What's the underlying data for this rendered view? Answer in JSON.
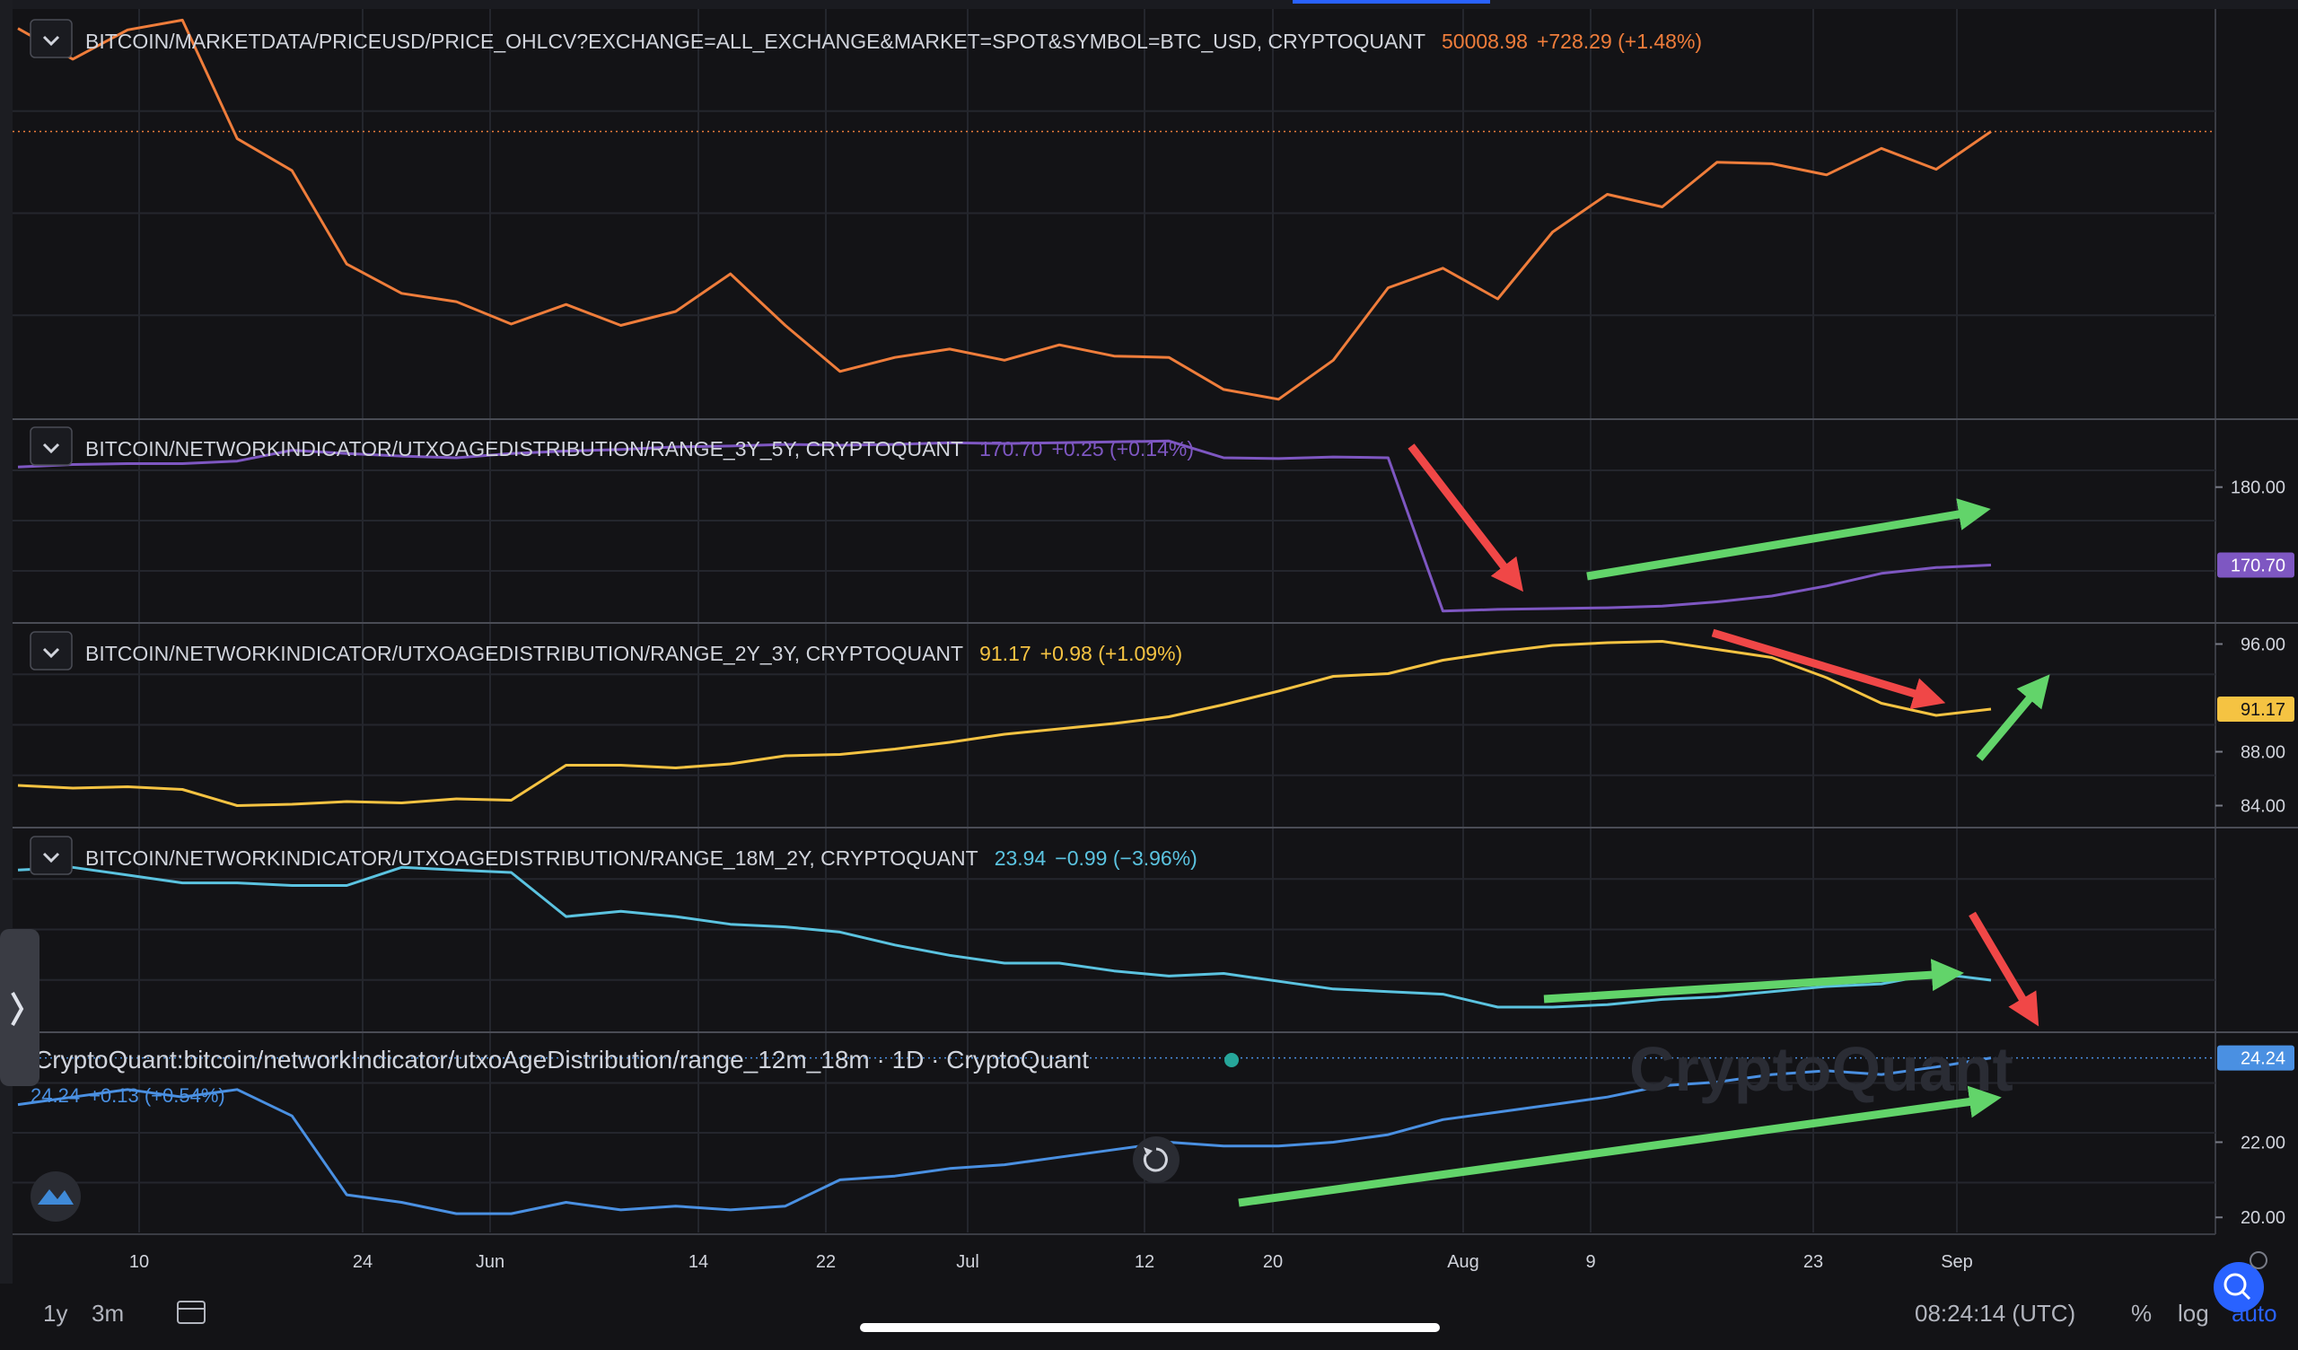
{
  "time_axis": {
    "labels": [
      "10",
      "24",
      "Jun",
      "14",
      "22",
      "Jul",
      "12",
      "20",
      "Aug",
      "9",
      "23",
      "Sep"
    ]
  },
  "panes": [
    {
      "key": "price",
      "title": "BITCOIN/MARKETDATA/PRICEUSD/PRICE_OHLCV?EXCHANGE=ALL_EXCHANGE&MARKET=SPOT&SYMBOL=BTC_USD, CRYPTOQUANT",
      "value": "50008.98",
      "change": "+728.29 (+1.48%)",
      "color": "#ef7d3b",
      "ticks": [],
      "price_tag": null
    },
    {
      "key": "range_3y_5y",
      "title": "BITCOIN/NETWORKINDICATOR/UTXOAGEDISTRIBUTION/RANGE_3Y_5Y, CRYPTOQUANT",
      "value": "170.70",
      "change": "+0.25 (+0.14%)",
      "color": "#7e57c2",
      "ticks": [
        "180.00"
      ],
      "price_tag": "170.70"
    },
    {
      "key": "range_2y_3y",
      "title": "BITCOIN/NETWORKINDICATOR/UTXOAGEDISTRIBUTION/RANGE_2Y_3Y, CRYPTOQUANT",
      "value": "91.17",
      "change": "+0.98 (+1.09%)",
      "color": "#f5c342",
      "ticks": [
        "96.00",
        "88.00",
        "84.00"
      ],
      "price_tag": "91.17"
    },
    {
      "key": "range_18m_2y",
      "title": "BITCOIN/NETWORKINDICATOR/UTXOAGEDISTRIBUTION/RANGE_18M_2Y, CRYPTOQUANT",
      "value": "23.94",
      "change": "−0.99 (−3.96%)",
      "color": "#5bc3e0",
      "ticks": [],
      "price_tag": null
    },
    {
      "key": "range_12m_18m",
      "title": "CryptoQuant:bitcoin/networkIndicator/utxoAgeDistribution/range_12m_18m · 1D · CryptoQuant",
      "value": "24.24",
      "change": "+0.13 (+0.54%)",
      "color": "#4a90e2",
      "ticks": [
        "22.00",
        "20.00"
      ],
      "price_tag": "24.24"
    }
  ],
  "watermark": "CryptoQuant",
  "bottom_bar": {
    "range_1y": "1y",
    "range_3m": "3m",
    "clock": "08:24:14 (UTC)",
    "percent": "%",
    "log": "log",
    "auto": "auto"
  },
  "chart_data": {
    "type": "line",
    "x": [
      "Apr 30",
      "May 3",
      "May 6",
      "May 10",
      "May 13",
      "May 16",
      "May 19",
      "May 24",
      "May 27",
      "Jun 1",
      "Jun 4",
      "Jun 7",
      "Jun 10",
      "Jun 14",
      "Jun 17",
      "Jun 22",
      "Jun 25",
      "Jun 28",
      "Jul 1",
      "Jul 4",
      "Jul 7",
      "Jul 12",
      "Jul 16",
      "Jul 20",
      "Jul 23",
      "Jul 27",
      "Aug 1",
      "Aug 4",
      "Aug 7",
      "Aug 9",
      "Aug 12",
      "Aug 15",
      "Aug 19",
      "Aug 23",
      "Aug 27",
      "Sep 1",
      "Sep 3"
    ],
    "series": [
      {
        "name": "BITCOIN/MARKETDATA/PRICEUSD/PRICE_OHLCV?EXCHANGE=ALL_EXCHANGE&MARKET=SPOT&SYMBOL=BTC_USD, CRYPTOQUANT",
        "values": [
          57400,
          55200,
          57300,
          58000,
          49500,
          47200,
          40500,
          38400,
          37800,
          36200,
          37600,
          36100,
          37100,
          39800,
          36100,
          32800,
          33800,
          34400,
          33600,
          34700,
          33900,
          33800,
          31500,
          30800,
          33600,
          38800,
          40200,
          38000,
          42800,
          45500,
          44600,
          47800,
          47700,
          46900,
          48800,
          47300,
          50009
        ]
      },
      {
        "name": "BITCOIN/NETWORKINDICATOR/UTXOAGEDISTRIBUTION/RANGE_3Y_5Y, CRYPTOQUANT",
        "values": [
          182.4,
          182.7,
          182.8,
          182.8,
          183.1,
          184.4,
          184.0,
          183.7,
          183.5,
          184.0,
          184.3,
          184.5,
          184.8,
          184.9,
          185.1,
          185.0,
          185.1,
          185.3,
          185.2,
          185.3,
          185.4,
          185.5,
          183.5,
          183.4,
          183.6,
          183.5,
          165.2,
          165.4,
          165.5,
          165.6,
          165.8,
          166.3,
          167.0,
          168.2,
          169.7,
          170.4,
          170.7
        ]
      },
      {
        "name": "BITCOIN/NETWORKINDICATOR/UTXOAGEDISTRIBUTION/RANGE_2Y_3Y, CRYPTOQUANT",
        "values": [
          85.5,
          85.3,
          85.4,
          85.2,
          84.0,
          84.1,
          84.3,
          84.2,
          84.5,
          84.4,
          87.0,
          87.0,
          86.8,
          87.1,
          87.7,
          87.8,
          88.2,
          88.7,
          89.3,
          89.7,
          90.1,
          90.6,
          91.5,
          92.5,
          93.6,
          93.8,
          94.8,
          95.4,
          95.9,
          96.1,
          96.2,
          95.6,
          95.0,
          93.5,
          91.6,
          90.7,
          91.17
        ]
      },
      {
        "name": "BITCOIN/NETWORKINDICATOR/UTXOAGEDISTRIBUTION/RANGE_18M_2Y, CRYPTOQUANT",
        "values": [
          28.2,
          28.3,
          28.0,
          27.7,
          27.7,
          27.6,
          27.6,
          28.3,
          28.2,
          28.1,
          26.4,
          26.6,
          26.4,
          26.1,
          26.0,
          25.8,
          25.3,
          24.9,
          24.6,
          24.6,
          24.3,
          24.1,
          24.2,
          23.9,
          23.6,
          23.5,
          23.4,
          22.9,
          22.9,
          23.0,
          23.2,
          23.3,
          23.5,
          23.7,
          23.8,
          24.2,
          23.94
        ]
      },
      {
        "name": "CryptoQuant:bitcoin/networkIndicator/utxoAgeDistribution/range_12m_18m · 1D · CryptoQuant",
        "values": [
          23.0,
          23.2,
          23.4,
          23.2,
          23.4,
          22.7,
          20.6,
          20.4,
          20.1,
          20.1,
          20.4,
          20.2,
          20.3,
          20.2,
          20.3,
          21.0,
          21.1,
          21.3,
          21.4,
          21.6,
          21.8,
          22.0,
          21.9,
          21.9,
          22.0,
          22.2,
          22.6,
          22.8,
          23.0,
          23.2,
          23.5,
          23.6,
          23.8,
          23.9,
          23.8,
          24.0,
          24.24
        ]
      }
    ],
    "annotations": [
      "red arrows and green arrows indicating trend directions on each pane"
    ]
  }
}
